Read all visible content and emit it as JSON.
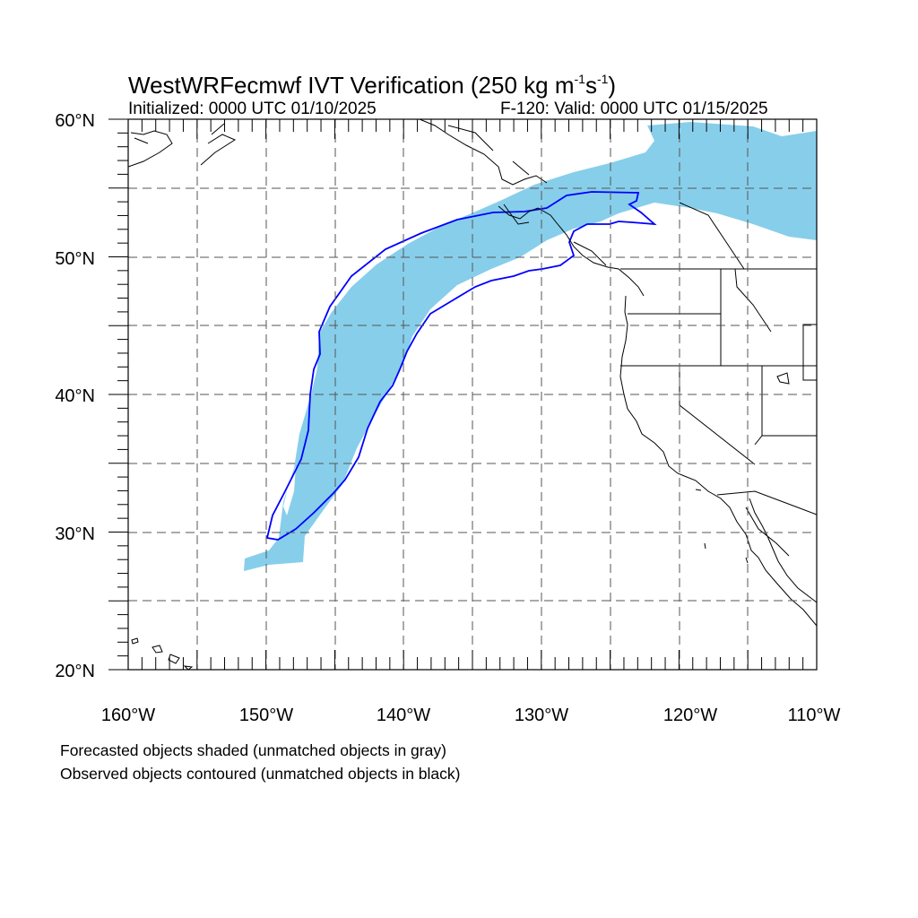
{
  "title": {
    "main": "WestWRFecmwf IVT Verification (250 kg m",
    "unit_exp1": "-1",
    "unit_mid": "s",
    "unit_exp2": "-1",
    "close": ")"
  },
  "initialized": "Initialized: 0000 UTC 01/10/2025",
  "valid": "F-120: Valid: 0000 UTC 01/15/2025",
  "map": {
    "lon_range": [
      -160,
      -110
    ],
    "lat_range": [
      20,
      60
    ],
    "lat_labels": [
      "20°N",
      "30°N",
      "40°N",
      "50°N",
      "60°N"
    ],
    "lon_labels": [
      "160°W",
      "150°W",
      "140°W",
      "130°W",
      "120°W",
      "110°W"
    ],
    "gridlines": "dashed every 5°",
    "colors": {
      "forecast_fill": "#87ceeb",
      "observed_contour": "#0000ff",
      "coastline": "#000000"
    }
  },
  "legend": {
    "line1": "Forecasted objects shaded (unmatched objects in gray)",
    "line2": "Observed objects contoured (unmatched objects in black)"
  }
}
